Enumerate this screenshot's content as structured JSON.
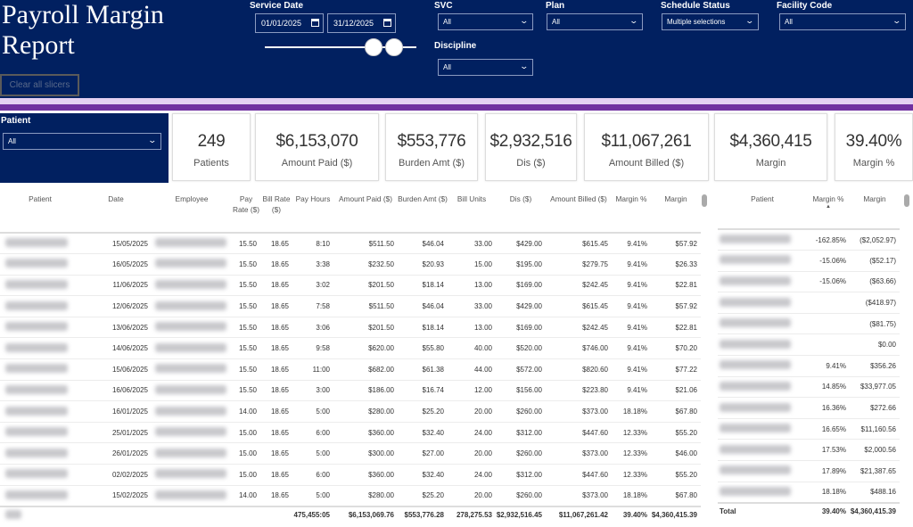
{
  "header": {
    "title": "Payroll Margin Report",
    "clear_label": "Clear all slicers"
  },
  "slicers": {
    "service_date": {
      "label": "Service Date",
      "start": "01/01/2025",
      "end": "31/12/2025"
    },
    "svc": {
      "label": "SVC",
      "value": "All"
    },
    "plan": {
      "label": "Plan",
      "value": "All"
    },
    "schedule_status": {
      "label": "Schedule Status",
      "value": "Multiple selections"
    },
    "facility_code": {
      "label": "Facility Code",
      "value": "All"
    },
    "discipline": {
      "label": "Discipline",
      "value": "All"
    },
    "patient": {
      "label": "Patient",
      "value": "All"
    }
  },
  "cards": [
    {
      "value": "249",
      "label": "Patients"
    },
    {
      "value": "$6,153,070",
      "label": "Amount Paid ($)"
    },
    {
      "value": "$553,776",
      "label": "Burden Amt ($)"
    },
    {
      "value": "$2,932,516",
      "label": "Dis ($)"
    },
    {
      "value": "$11,067,261",
      "label": "Amount Billed ($)"
    },
    {
      "value": "$4,360,415",
      "label": "Margin"
    },
    {
      "value": "39.40%",
      "label": "Margin %"
    }
  ],
  "main_table": {
    "columns": [
      "Patient",
      "Date",
      "Employee",
      "Pay Rate ($)",
      "Bill Rate ($)",
      "Pay Hours",
      "Amount Paid ($)",
      "Burden Amt ($)",
      "Bill Units",
      "Dis ($)",
      "Amount Billed ($)",
      "Margin %",
      "Margin"
    ],
    "rows": [
      [
        "15/05/2025",
        "15.50",
        "18.65",
        "8:10",
        "$511.50",
        "$46.04",
        "33.00",
        "$429.00",
        "$615.45",
        "9.41%",
        "$57.92"
      ],
      [
        "16/05/2025",
        "15.50",
        "18.65",
        "3:38",
        "$232.50",
        "$20.93",
        "15.00",
        "$195.00",
        "$279.75",
        "9.41%",
        "$26.33"
      ],
      [
        "11/06/2025",
        "15.50",
        "18.65",
        "3:02",
        "$201.50",
        "$18.14",
        "13.00",
        "$169.00",
        "$242.45",
        "9.41%",
        "$22.81"
      ],
      [
        "12/06/2025",
        "15.50",
        "18.65",
        "7:58",
        "$511.50",
        "$46.04",
        "33.00",
        "$429.00",
        "$615.45",
        "9.41%",
        "$57.92"
      ],
      [
        "13/06/2025",
        "15.50",
        "18.65",
        "3:06",
        "$201.50",
        "$18.14",
        "13.00",
        "$169.00",
        "$242.45",
        "9.41%",
        "$22.81"
      ],
      [
        "14/06/2025",
        "15.50",
        "18.65",
        "9:58",
        "$620.00",
        "$55.80",
        "40.00",
        "$520.00",
        "$746.00",
        "9.41%",
        "$70.20"
      ],
      [
        "15/06/2025",
        "15.50",
        "18.65",
        "11:00",
        "$682.00",
        "$61.38",
        "44.00",
        "$572.00",
        "$820.60",
        "9.41%",
        "$77.22"
      ],
      [
        "16/06/2025",
        "15.50",
        "18.65",
        "3:00",
        "$186.00",
        "$16.74",
        "12.00",
        "$156.00",
        "$223.80",
        "9.41%",
        "$21.06"
      ],
      [
        "16/01/2025",
        "14.00",
        "18.65",
        "5:00",
        "$280.00",
        "$25.20",
        "20.00",
        "$260.00",
        "$373.00",
        "18.18%",
        "$67.80"
      ],
      [
        "25/01/2025",
        "15.00",
        "18.65",
        "6:00",
        "$360.00",
        "$32.40",
        "24.00",
        "$312.00",
        "$447.60",
        "12.33%",
        "$55.20"
      ],
      [
        "26/01/2025",
        "15.00",
        "18.65",
        "5:00",
        "$300.00",
        "$27.00",
        "20.00",
        "$260.00",
        "$373.00",
        "12.33%",
        "$46.00"
      ],
      [
        "02/02/2025",
        "15.00",
        "18.65",
        "6:00",
        "$360.00",
        "$32.40",
        "24.00",
        "$312.00",
        "$447.60",
        "12.33%",
        "$55.20"
      ],
      [
        "15/02/2025",
        "14.00",
        "18.65",
        "5:00",
        "$280.00",
        "$25.20",
        "20.00",
        "$260.00",
        "$373.00",
        "18.18%",
        "$67.80"
      ]
    ],
    "total": [
      "",
      "",
      "",
      "475,455:05",
      "$6,153,069.76",
      "$553,776.28",
      "278,275.53",
      "$2,932,516.45",
      "$11,067,261.42",
      "39.40%",
      "$4,360,415.39"
    ]
  },
  "side_table": {
    "columns": [
      "Patient",
      "Margin %",
      "Margin"
    ],
    "sort": "Margin % ascending",
    "rows": [
      [
        "-162.85%",
        "($2,052.97)"
      ],
      [
        "-15.06%",
        "($52.17)"
      ],
      [
        "-15.06%",
        "($63.66)"
      ],
      [
        "",
        "($418.97)"
      ],
      [
        "",
        "($81.75)"
      ],
      [
        "",
        "$0.00"
      ],
      [
        "9.41%",
        "$356.26"
      ],
      [
        "14.85%",
        "$33,977.05"
      ],
      [
        "16.36%",
        "$272.66"
      ],
      [
        "16.65%",
        "$11,160.56"
      ],
      [
        "17.53%",
        "$2,000.56"
      ],
      [
        "17.89%",
        "$21,387.65"
      ],
      [
        "18.18%",
        "$488.16"
      ]
    ],
    "total_label": "Total",
    "total": [
      "39.40%",
      "$4,360,415.39"
    ]
  },
  "colors": {
    "header": "#012060",
    "accent_purple": "#7030a0",
    "accent_lilac": "#e3d0f2"
  }
}
